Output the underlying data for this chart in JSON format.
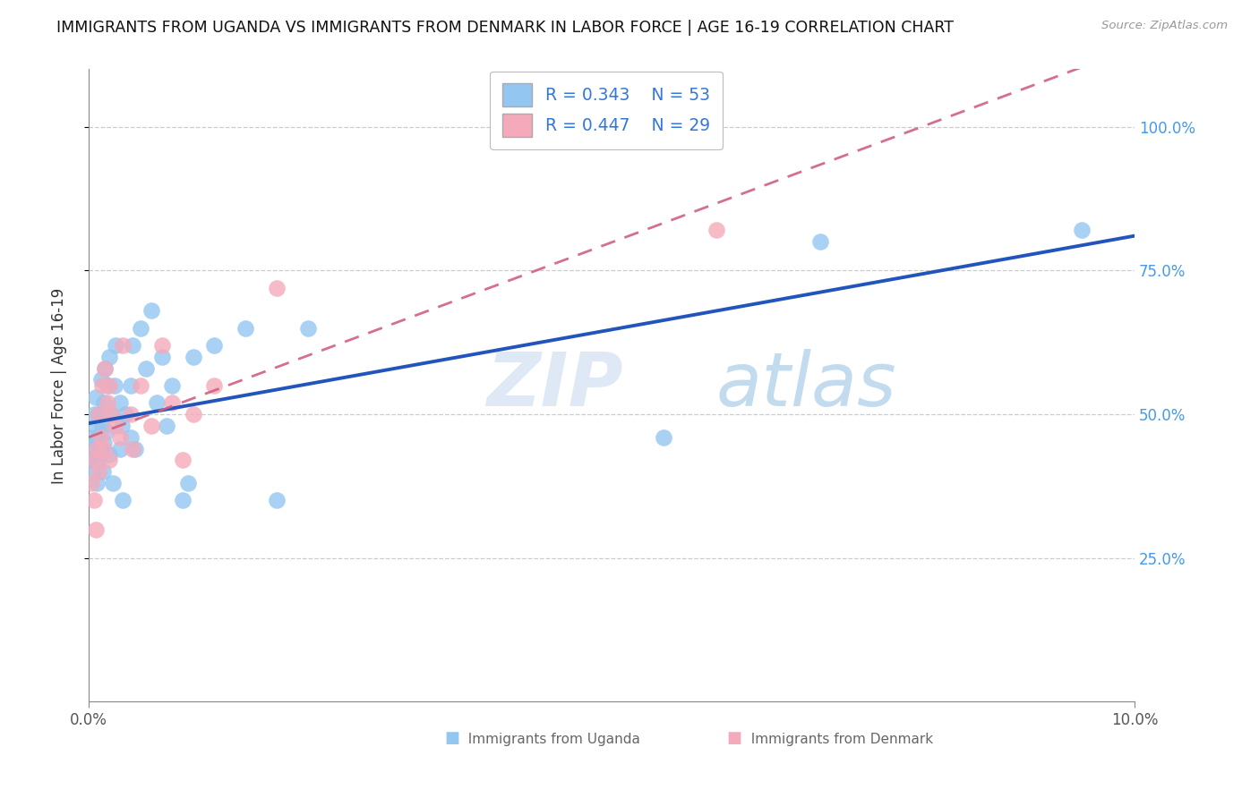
{
  "title": "IMMIGRANTS FROM UGANDA VS IMMIGRANTS FROM DENMARK IN LABOR FORCE | AGE 16-19 CORRELATION CHART",
  "source": "Source: ZipAtlas.com",
  "ylabel": "In Labor Force | Age 16-19",
  "y_ticks": [
    0.25,
    0.5,
    0.75,
    1.0
  ],
  "y_tick_labels": [
    "25.0%",
    "50.0%",
    "75.0%",
    "100.0%"
  ],
  "xlim": [
    0.0,
    0.1
  ],
  "ylim": [
    0.0,
    1.1
  ],
  "watermark": "ZIPatlas",
  "legend_R_blue": "R = 0.343",
  "legend_N_blue": "N = 53",
  "legend_R_pink": "R = 0.447",
  "legend_N_pink": "N = 29",
  "uganda_color": "#93C6F0",
  "denmark_color": "#F5AABB",
  "uganda_line_color": "#2255BB",
  "denmark_line_color": "#D06080",
  "uganda_x": [
    0.0002,
    0.0003,
    0.0004,
    0.0005,
    0.0005,
    0.0006,
    0.0007,
    0.0007,
    0.0008,
    0.0009,
    0.001,
    0.001,
    0.0012,
    0.0012,
    0.0013,
    0.0014,
    0.0015,
    0.0015,
    0.0016,
    0.0017,
    0.0018,
    0.002,
    0.002,
    0.0022,
    0.0023,
    0.0025,
    0.0026,
    0.003,
    0.003,
    0.0032,
    0.0033,
    0.0035,
    0.004,
    0.004,
    0.0042,
    0.0045,
    0.005,
    0.0055,
    0.006,
    0.0065,
    0.007,
    0.0075,
    0.008,
    0.009,
    0.0095,
    0.01,
    0.012,
    0.015,
    0.018,
    0.021,
    0.055,
    0.07,
    0.095
  ],
  "uganda_y": [
    0.42,
    0.44,
    0.4,
    0.46,
    0.5,
    0.43,
    0.48,
    0.53,
    0.38,
    0.46,
    0.42,
    0.5,
    0.44,
    0.56,
    0.48,
    0.4,
    0.52,
    0.45,
    0.58,
    0.47,
    0.55,
    0.43,
    0.6,
    0.5,
    0.38,
    0.55,
    0.62,
    0.44,
    0.52,
    0.48,
    0.35,
    0.5,
    0.46,
    0.55,
    0.62,
    0.44,
    0.65,
    0.58,
    0.68,
    0.52,
    0.6,
    0.48,
    0.55,
    0.35,
    0.38,
    0.6,
    0.62,
    0.65,
    0.35,
    0.65,
    0.46,
    0.8,
    0.82
  ],
  "denmark_x": [
    0.0003,
    0.0005,
    0.0006,
    0.0007,
    0.0008,
    0.001,
    0.001,
    0.0012,
    0.0013,
    0.0015,
    0.0016,
    0.0018,
    0.002,
    0.002,
    0.0022,
    0.0025,
    0.003,
    0.0033,
    0.004,
    0.0042,
    0.005,
    0.006,
    0.007,
    0.008,
    0.009,
    0.01,
    0.012,
    0.018,
    0.06
  ],
  "denmark_y": [
    0.38,
    0.35,
    0.42,
    0.3,
    0.44,
    0.4,
    0.5,
    0.46,
    0.55,
    0.44,
    0.58,
    0.52,
    0.42,
    0.55,
    0.5,
    0.48,
    0.46,
    0.62,
    0.5,
    0.44,
    0.55,
    0.48,
    0.62,
    0.52,
    0.42,
    0.5,
    0.55,
    0.72,
    0.82
  ]
}
